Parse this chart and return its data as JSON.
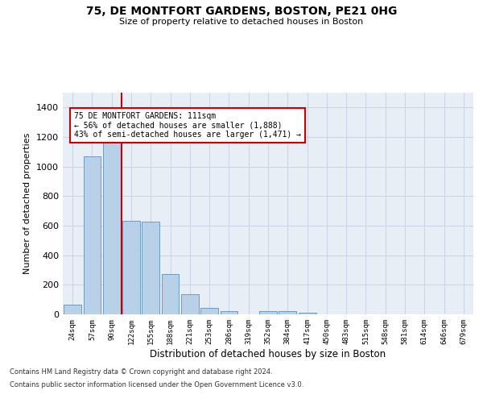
{
  "title": "75, DE MONTFORT GARDENS, BOSTON, PE21 0HG",
  "subtitle": "Size of property relative to detached houses in Boston",
  "xlabel": "Distribution of detached houses by size in Boston",
  "ylabel": "Number of detached properties",
  "categories": [
    "24sqm",
    "57sqm",
    "90sqm",
    "122sqm",
    "155sqm",
    "188sqm",
    "221sqm",
    "253sqm",
    "286sqm",
    "319sqm",
    "352sqm",
    "384sqm",
    "417sqm",
    "450sqm",
    "483sqm",
    "515sqm",
    "548sqm",
    "581sqm",
    "614sqm",
    "646sqm",
    "679sqm"
  ],
  "values": [
    65,
    1070,
    1160,
    635,
    630,
    275,
    135,
    45,
    20,
    0,
    20,
    20,
    10,
    0,
    0,
    0,
    0,
    0,
    0,
    0,
    0
  ],
  "bar_color": "#b8d0e8",
  "bar_edge_color": "#6090b8",
  "grid_color": "#c8d4e4",
  "background_color": "#e8eef6",
  "annotation_text": "75 DE MONTFORT GARDENS: 111sqm\n← 56% of detached houses are smaller (1,888)\n43% of semi-detached houses are larger (1,471) →",
  "annotation_box_color": "#ffffff",
  "annotation_box_edge": "#cc0000",
  "property_line_color": "#cc0000",
  "property_line_x": 2.5,
  "ylim": [
    0,
    1500
  ],
  "yticks": [
    0,
    200,
    400,
    600,
    800,
    1000,
    1200,
    1400
  ],
  "footer_line1": "Contains HM Land Registry data © Crown copyright and database right 2024.",
  "footer_line2": "Contains public sector information licensed under the Open Government Licence v3.0."
}
